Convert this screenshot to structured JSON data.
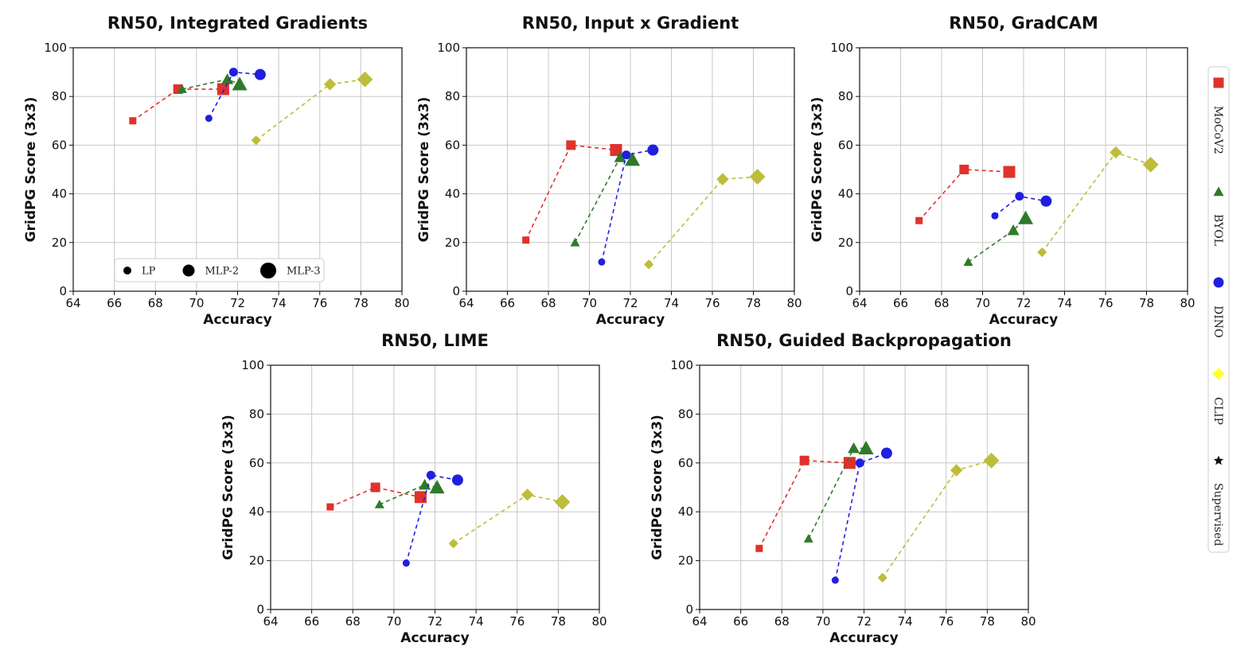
{
  "colors": {
    "MoCoV2": "#e0322c",
    "BYOL": "#2e7a2a",
    "DINO": "#1f1fe0",
    "CLIP": "#bdbd3a",
    "Supervised": "#111111"
  },
  "size_legend": {
    "items": [
      "LP",
      "MLP-2",
      "MLP-3"
    ]
  },
  "method_legend": {
    "items": [
      {
        "name": "MoCoV2",
        "marker": "square",
        "color": "#e0322c"
      },
      {
        "name": "BYOL",
        "marker": "triangle",
        "color": "#2e7a2a"
      },
      {
        "name": "DINO",
        "marker": "circle",
        "color": "#1f1fe0"
      },
      {
        "name": "CLIP",
        "marker": "diamond",
        "color": "#ffff33"
      },
      {
        "name": "Supervised",
        "marker": "star",
        "color": "#111111"
      }
    ]
  },
  "chart_data": [
    {
      "type": "scatter",
      "title": "RN50, Integrated Gradients",
      "xlabel": "Accuracy",
      "ylabel": "GridPG Score (3x3)",
      "xlim": [
        64,
        80
      ],
      "ylim": [
        0,
        100
      ],
      "xticks": [
        "64",
        "66",
        "68",
        "70",
        "72",
        "74",
        "76",
        "78",
        "80"
      ],
      "yticks": [
        "0",
        "20",
        "40",
        "60",
        "80",
        "100"
      ],
      "grid": true,
      "series": [
        {
          "name": "MoCoV2",
          "marker": "square",
          "x": [
            66.9,
            69.1,
            71.3
          ],
          "y": [
            70,
            83,
            83
          ]
        },
        {
          "name": "BYOL",
          "marker": "triangle",
          "x": [
            69.3,
            71.5,
            72.1
          ],
          "y": [
            83,
            87,
            85
          ]
        },
        {
          "name": "DINO",
          "marker": "circle",
          "x": [
            70.6,
            71.8,
            73.1
          ],
          "y": [
            71,
            90,
            89
          ]
        },
        {
          "name": "CLIP",
          "marker": "diamond",
          "x": [
            72.9,
            76.5,
            78.2
          ],
          "y": [
            62,
            85,
            87
          ]
        }
      ]
    },
    {
      "type": "scatter",
      "title": "RN50, Input x Gradient",
      "xlabel": "Accuracy",
      "ylabel": "GridPG Score (3x3)",
      "xlim": [
        64,
        80
      ],
      "ylim": [
        0,
        100
      ],
      "xticks": [
        "64",
        "66",
        "68",
        "70",
        "72",
        "74",
        "76",
        "78",
        "80"
      ],
      "yticks": [
        "0",
        "20",
        "40",
        "60",
        "80",
        "100"
      ],
      "grid": true,
      "series": [
        {
          "name": "MoCoV2",
          "marker": "square",
          "x": [
            66.9,
            69.1,
            71.3
          ],
          "y": [
            21,
            60,
            58
          ]
        },
        {
          "name": "BYOL",
          "marker": "triangle",
          "x": [
            69.3,
            71.5,
            72.1
          ],
          "y": [
            20,
            55,
            54
          ]
        },
        {
          "name": "DINO",
          "marker": "circle",
          "x": [
            70.6,
            71.8,
            73.1
          ],
          "y": [
            12,
            56,
            58
          ]
        },
        {
          "name": "CLIP",
          "marker": "diamond",
          "x": [
            72.9,
            76.5,
            78.2
          ],
          "y": [
            11,
            46,
            47
          ]
        }
      ]
    },
    {
      "type": "scatter",
      "title": "RN50, GradCAM",
      "xlabel": "Accuracy",
      "ylabel": "GridPG Score (3x3)",
      "xlim": [
        64,
        80
      ],
      "ylim": [
        0,
        100
      ],
      "xticks": [
        "64",
        "66",
        "68",
        "70",
        "72",
        "74",
        "76",
        "78",
        "80"
      ],
      "yticks": [
        "0",
        "20",
        "40",
        "60",
        "80",
        "100"
      ],
      "grid": true,
      "series": [
        {
          "name": "MoCoV2",
          "marker": "square",
          "x": [
            66.9,
            69.1,
            71.3
          ],
          "y": [
            29,
            50,
            49
          ]
        },
        {
          "name": "BYOL",
          "marker": "triangle",
          "x": [
            69.3,
            71.5,
            72.1
          ],
          "y": [
            12,
            25,
            30
          ]
        },
        {
          "name": "DINO",
          "marker": "circle",
          "x": [
            70.6,
            71.8,
            73.1
          ],
          "y": [
            31,
            39,
            37
          ]
        },
        {
          "name": "CLIP",
          "marker": "diamond",
          "x": [
            72.9,
            76.5,
            78.2
          ],
          "y": [
            16,
            57,
            52
          ]
        }
      ]
    },
    {
      "type": "scatter",
      "title": "RN50, LIME",
      "xlabel": "Accuracy",
      "ylabel": "GridPG Score (3x3)",
      "xlim": [
        64,
        80
      ],
      "ylim": [
        0,
        100
      ],
      "xticks": [
        "64",
        "66",
        "68",
        "70",
        "72",
        "74",
        "76",
        "78",
        "80"
      ],
      "yticks": [
        "0",
        "20",
        "40",
        "60",
        "80",
        "100"
      ],
      "grid": true,
      "series": [
        {
          "name": "MoCoV2",
          "marker": "square",
          "x": [
            66.9,
            69.1,
            71.3
          ],
          "y": [
            42,
            50,
            46
          ]
        },
        {
          "name": "BYOL",
          "marker": "triangle",
          "x": [
            69.3,
            71.5,
            72.1
          ],
          "y": [
            43,
            51,
            50
          ]
        },
        {
          "name": "DINO",
          "marker": "circle",
          "x": [
            70.6,
            71.8,
            73.1
          ],
          "y": [
            19,
            55,
            53
          ]
        },
        {
          "name": "CLIP",
          "marker": "diamond",
          "x": [
            72.9,
            76.5,
            78.2
          ],
          "y": [
            27,
            47,
            44
          ]
        }
      ]
    },
    {
      "type": "scatter",
      "title": "RN50, Guided Backpropagation",
      "xlabel": "Accuracy",
      "ylabel": "GridPG Score (3x3)",
      "xlim": [
        64,
        80
      ],
      "ylim": [
        0,
        100
      ],
      "xticks": [
        "64",
        "66",
        "68",
        "70",
        "72",
        "74",
        "76",
        "78",
        "80"
      ],
      "yticks": [
        "0",
        "20",
        "40",
        "60",
        "80",
        "100"
      ],
      "grid": true,
      "series": [
        {
          "name": "MoCoV2",
          "marker": "square",
          "x": [
            66.9,
            69.1,
            71.3
          ],
          "y": [
            25,
            61,
            60
          ]
        },
        {
          "name": "BYOL",
          "marker": "triangle",
          "x": [
            69.3,
            71.5,
            72.1
          ],
          "y": [
            29,
            66,
            66
          ]
        },
        {
          "name": "DINO",
          "marker": "circle",
          "x": [
            70.6,
            71.8,
            73.1
          ],
          "y": [
            12,
            60,
            64
          ]
        },
        {
          "name": "CLIP",
          "marker": "diamond",
          "x": [
            72.9,
            76.5,
            78.2
          ],
          "y": [
            13,
            57,
            61
          ]
        }
      ]
    }
  ]
}
